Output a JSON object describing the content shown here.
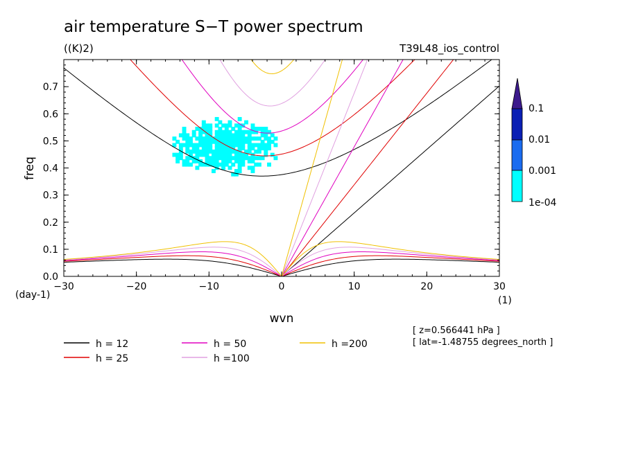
{
  "chart_data": {
    "type": "contour",
    "title": "air temperature S−T power spectrum",
    "units_label": "((K)2)",
    "run_label": "T39L48_ios_control",
    "xlabel": "wvn",
    "ylabel": "freq",
    "x_unit_label": "(1)",
    "y_unit_label": "(day-1)",
    "xlim": [
      -30,
      30
    ],
    "ylim": [
      0,
      0.8
    ],
    "x_ticks": [
      -30,
      -20,
      -10,
      0,
      10,
      20,
      30
    ],
    "x_tick_labels": [
      "−30",
      "−20",
      "−10",
      "0",
      "10",
      "20",
      "30"
    ],
    "y_ticks": [
      0,
      0.1,
      0.2,
      0.3,
      0.4,
      0.5,
      0.6,
      0.7
    ],
    "y_tick_labels": [
      "0.0",
      "0.1",
      "0.2",
      "0.3",
      "0.4",
      "0.5",
      "0.6",
      "0.7"
    ],
    "colorbar": {
      "levels": [
        "0.1",
        "0.01",
        "0.001",
        "1e-04"
      ],
      "colors": [
        "#3c1a8c",
        "#0a1fb4",
        "#1a6cf0",
        "#00ffff"
      ]
    },
    "dispersion_curves": [
      {
        "name": "h = 12",
        "h": 12,
        "color": "#000000"
      },
      {
        "name": "h = 25",
        "h": 25,
        "color": "#e00000"
      },
      {
        "name": "h = 50",
        "h": 50,
        "color": "#e000c0"
      },
      {
        "name": "h =100",
        "h": 100,
        "color": "#e0a0e0"
      },
      {
        "name": "h =200",
        "h": 200,
        "color": "#f0c000"
      }
    ],
    "contour_region": {
      "level": "1e-04",
      "approx_wvn_range": [
        -15.5,
        -0.5
      ],
      "approx_freq_range": [
        0.36,
        0.66
      ]
    },
    "annotations": {
      "z": "[ z=0.566441 hPa ]",
      "lat": "[ lat=-1.48755 degrees_north ]"
    }
  }
}
